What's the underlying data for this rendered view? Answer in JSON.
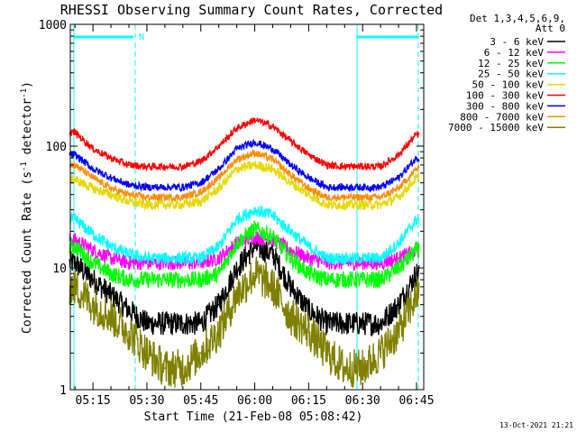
{
  "chart_data": {
    "type": "line",
    "title": "RHESSI Observing Summary Count Rates, Corrected",
    "xlabel": "Start Time (21-Feb-08 05:08:42)",
    "ylabel_main": "Corrected Count Rate (s",
    "ylabel_sup1": "-1",
    "ylabel_mid": " detector",
    "ylabel_sup2": "-1",
    "ylabel_end": ")",
    "yscale": "log",
    "ylim": [
      1,
      1000
    ],
    "xlim": [
      "05:08:42",
      "06:47:00"
    ],
    "x_ticks": [
      "05:15",
      "05:30",
      "05:45",
      "06:00",
      "06:15",
      "06:30",
      "06:45"
    ],
    "y_ticks": [
      "1",
      "10",
      "100",
      "1000"
    ],
    "legend_header": [
      "Det 1,3,4,5,6,9,",
      "Att 0"
    ],
    "legend_placement": "right",
    "x": [
      "05:10",
      "05:15",
      "05:20",
      "05:25",
      "05:30",
      "05:35",
      "05:40",
      "05:45",
      "05:50",
      "05:55",
      "06:00",
      "06:05",
      "06:10",
      "06:15",
      "06:20",
      "06:25",
      "06:30",
      "06:35",
      "06:40",
      "06:45"
    ],
    "series": [
      {
        "name": "3 - 6 keV",
        "color": "#000000",
        "values": [
          11,
          8,
          6,
          4.5,
          3.5,
          3.5,
          3.5,
          3.5,
          5,
          10,
          15,
          13,
          7,
          4.5,
          3.5,
          3.5,
          3.5,
          3.5,
          5,
          9
        ]
      },
      {
        "name": "6 - 12 keV",
        "color": "#ff00ff",
        "values": [
          17,
          14,
          12,
          11,
          11,
          11,
          11,
          11,
          12,
          16,
          18,
          17,
          14,
          12,
          11,
          11,
          11,
          11,
          12,
          14
        ]
      },
      {
        "name": "12 - 25 keV",
        "color": "#00ff00",
        "values": [
          15,
          11,
          9,
          8,
          8,
          8,
          8,
          8,
          9,
          16,
          21,
          18,
          12,
          9,
          8,
          8,
          8,
          8,
          10,
          14
        ]
      },
      {
        "name": "25 - 50 keV",
        "color": "#00ffff",
        "values": [
          25,
          19,
          15,
          13,
          12,
          12,
          12,
          12,
          15,
          25,
          30,
          27,
          20,
          15,
          12,
          12,
          12,
          12,
          16,
          25
        ]
      },
      {
        "name": "50 - 100 keV",
        "color": "#e6d800",
        "values": [
          53,
          45,
          40,
          35,
          33,
          33,
          33,
          35,
          45,
          65,
          70,
          65,
          50,
          40,
          33,
          33,
          33,
          33,
          38,
          55
        ]
      },
      {
        "name": "100 - 300 keV",
        "color": "#ff0000",
        "values": [
          130,
          95,
          80,
          70,
          68,
          68,
          68,
          75,
          100,
          140,
          165,
          145,
          110,
          85,
          70,
          68,
          68,
          68,
          85,
          125
        ]
      },
      {
        "name": "300 - 800 keV",
        "color": "#0000ff",
        "values": [
          85,
          65,
          55,
          48,
          46,
          46,
          46,
          50,
          65,
          95,
          108,
          95,
          70,
          55,
          46,
          46,
          46,
          46,
          55,
          80
        ]
      },
      {
        "name": "800 - 7000 keV",
        "color": "#ff8c00",
        "values": [
          70,
          55,
          45,
          40,
          38,
          38,
          38,
          42,
          55,
          78,
          88,
          78,
          58,
          45,
          38,
          38,
          38,
          38,
          45,
          65
        ]
      },
      {
        "name": "7000 - 15000 keV",
        "color": "#808000",
        "values": [
          7,
          5,
          4,
          3,
          2,
          1.5,
          1.5,
          2,
          3,
          6,
          9,
          7,
          4,
          3,
          2,
          1.5,
          1.5,
          2,
          3,
          6
        ]
      }
    ],
    "marker_label": "N",
    "timestamp": "13-Oct-2021 21:21"
  }
}
